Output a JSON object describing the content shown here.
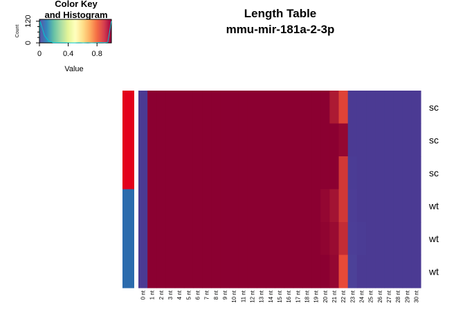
{
  "chart_data": {
    "type": "heatmap",
    "title": "Length Table",
    "subtitle": "mmu-mir-181a-2-3p",
    "columns": [
      "0 nt",
      "1 nt",
      "2 nt",
      "3 nt",
      "4 nt",
      "5 nt",
      "6 nt",
      "7 nt",
      "8 nt",
      "9 nt",
      "10 nt",
      "11 nt",
      "12 nt",
      "13 nt",
      "14 nt",
      "15 nt",
      "16 nt",
      "17 nt",
      "18 nt",
      "19 nt",
      "20 nt",
      "21 nt",
      "22 nt",
      "23 nt",
      "24 nt",
      "25 nt",
      "26 nt",
      "27 nt",
      "28 nt",
      "29 nt",
      "30 nt"
    ],
    "rows": [
      "sc",
      "sc",
      "sc",
      "wt",
      "wt",
      "wt"
    ],
    "row_groups": [
      {
        "label": "sc",
        "color": "#E3001B"
      },
      {
        "label": "sc",
        "color": "#E3001B"
      },
      {
        "label": "sc",
        "color": "#E3001B"
      },
      {
        "label": "wt",
        "color": "#2B6BAD"
      },
      {
        "label": "wt",
        "color": "#2B6BAD"
      },
      {
        "label": "wt",
        "color": "#2B6BAD"
      }
    ],
    "values": [
      [
        0,
        1,
        1,
        1,
        1,
        1,
        1,
        1,
        1,
        1,
        1,
        1,
        1,
        1,
        1,
        1,
        1,
        1,
        1,
        1,
        1,
        0.93,
        0.82,
        0,
        0,
        0,
        0,
        0,
        0,
        0,
        0
      ],
      [
        0,
        1,
        1,
        1,
        1,
        1,
        1,
        1,
        1,
        1,
        1,
        1,
        1,
        1,
        1,
        1,
        1,
        1,
        1,
        1,
        1,
        1,
        0.98,
        0,
        0,
        0,
        0,
        0,
        0,
        0,
        0
      ],
      [
        0,
        1,
        1,
        1,
        1,
        1,
        1,
        1,
        1,
        1,
        1,
        1,
        1,
        1,
        1,
        1,
        1,
        1,
        1,
        1,
        1,
        1,
        0.85,
        0.02,
        0,
        0,
        0,
        0,
        0,
        0,
        0
      ],
      [
        0,
        1,
        1,
        1,
        1,
        1,
        1,
        1,
        1,
        1,
        1,
        1,
        1,
        1,
        1,
        1,
        1,
        1,
        1,
        1,
        0.98,
        0.95,
        0.85,
        0.03,
        0,
        0,
        0,
        0,
        0,
        0,
        0
      ],
      [
        0,
        1,
        1,
        1,
        1,
        1,
        1,
        1,
        1,
        1,
        1,
        1,
        1,
        1,
        1,
        1,
        1,
        1,
        1,
        1,
        0.99,
        0.97,
        0.88,
        0.04,
        0.02,
        0,
        0,
        0,
        0,
        0,
        0
      ],
      [
        0,
        1,
        1,
        1,
        1,
        1,
        1,
        1,
        1,
        1,
        1,
        1,
        1,
        1,
        1,
        1,
        1,
        1,
        1,
        1,
        1,
        0.98,
        0.8,
        0.06,
        0,
        0,
        0,
        0,
        0,
        0,
        0
      ]
    ],
    "color_key": {
      "title_line1": "Color Key",
      "title_line2": "and Histogram",
      "xlabel": "Value",
      "ylabel": "Count",
      "xticks": [
        "0",
        "0.4",
        "0.8"
      ],
      "xtick_values": [
        0,
        0.4,
        0.8
      ],
      "yticks": [
        "0",
        "120"
      ],
      "ytick_values": [
        0,
        120
      ],
      "range": [
        0,
        1
      ],
      "ymax": 130,
      "histogram": [
        {
          "x": 0.0,
          "count": 6
        },
        {
          "x": 0.01,
          "count": 120
        },
        {
          "x": 0.07,
          "count": 40
        },
        {
          "x": 0.13,
          "count": 10
        },
        {
          "x": 0.19,
          "count": 1
        },
        {
          "x": 0.25,
          "count": 1
        },
        {
          "x": 0.31,
          "count": 1
        },
        {
          "x": 0.37,
          "count": 1
        },
        {
          "x": 0.43,
          "count": 0
        },
        {
          "x": 0.49,
          "count": 0
        },
        {
          "x": 0.55,
          "count": 1
        },
        {
          "x": 0.61,
          "count": 0
        },
        {
          "x": 0.67,
          "count": 1
        },
        {
          "x": 0.73,
          "count": 0
        },
        {
          "x": 0.79,
          "count": 1
        },
        {
          "x": 0.85,
          "count": 2
        },
        {
          "x": 0.91,
          "count": 1
        },
        {
          "x": 0.95,
          "count": 3
        },
        {
          "x": 1.0,
          "count": 120
        }
      ]
    },
    "palette": [
      "#5E4FA2",
      "#3288BD",
      "#66C2A5",
      "#ABDDA4",
      "#E6F598",
      "#FFFFBF",
      "#FEE08B",
      "#FDAE61",
      "#F46D43",
      "#D53E4F",
      "#9E0142"
    ],
    "cell_colors": {
      "low": "#4B3A93",
      "high": "#8B0031"
    }
  }
}
